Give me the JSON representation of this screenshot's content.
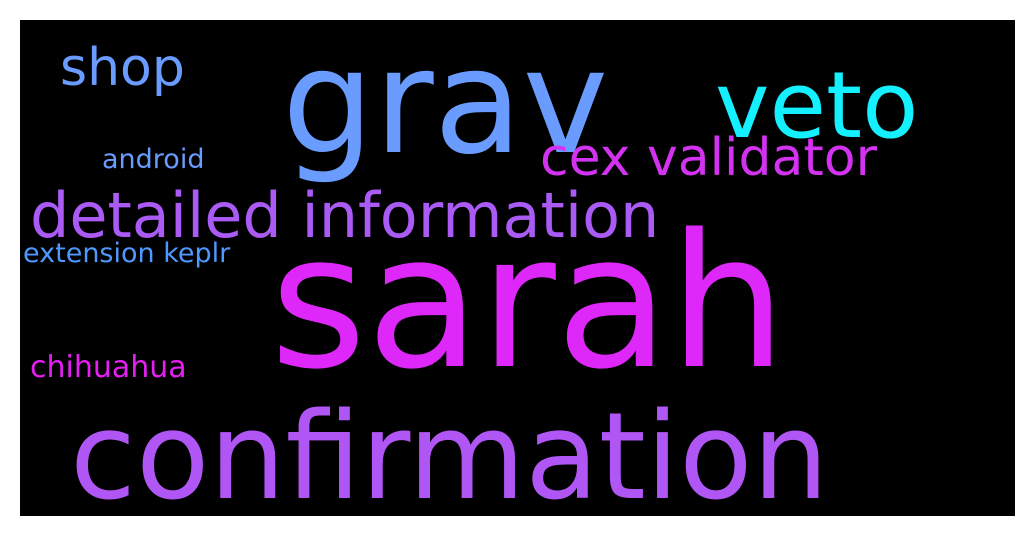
{
  "words": {
    "grav": {
      "text": "grav",
      "color": "#6a9cff"
    },
    "sarah": {
      "text": "sarah",
      "color": "#de28f9"
    },
    "confirmation": {
      "text": "confirmation",
      "color": "#b056f5"
    },
    "veto": {
      "text": "veto",
      "color": "#14f0ff"
    },
    "detailed_information": {
      "text": "detailed information",
      "color": "#aa5af5"
    },
    "cex_validator": {
      "text": "cex validator",
      "color": "#d333f0"
    },
    "shop": {
      "text": "shop",
      "color": "#6a9cff"
    },
    "android": {
      "text": "android",
      "color": "#6a9cff"
    },
    "extension_keplr": {
      "text": "extension keplr",
      "color": "#4f98ff"
    },
    "chihuahua": {
      "text": "chihuahua",
      "color": "#e51ef2"
    }
  }
}
